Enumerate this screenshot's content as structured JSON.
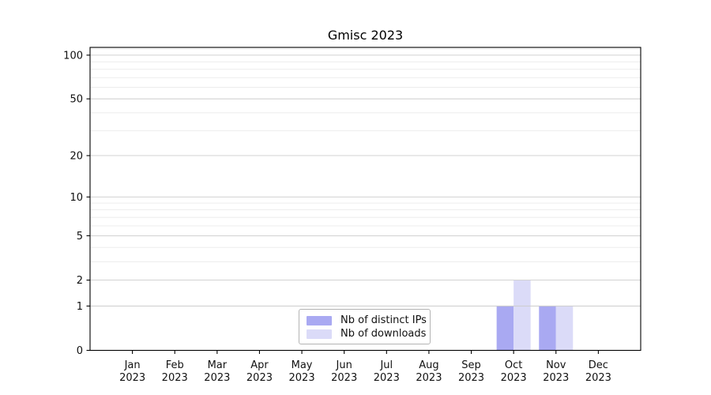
{
  "chart_data": {
    "type": "bar",
    "title": "Gmisc 2023",
    "xlabel": "",
    "ylabel": "",
    "yscale": "log1p",
    "ylim": [
      0,
      113
    ],
    "grid": "on",
    "legend_position": "bottom-center-inside",
    "categories": [
      {
        "month": "Jan",
        "year": "2023"
      },
      {
        "month": "Feb",
        "year": "2023"
      },
      {
        "month": "Mar",
        "year": "2023"
      },
      {
        "month": "Apr",
        "year": "2023"
      },
      {
        "month": "May",
        "year": "2023"
      },
      {
        "month": "Jun",
        "year": "2023"
      },
      {
        "month": "Jul",
        "year": "2023"
      },
      {
        "month": "Aug",
        "year": "2023"
      },
      {
        "month": "Sep",
        "year": "2023"
      },
      {
        "month": "Oct",
        "year": "2023"
      },
      {
        "month": "Nov",
        "year": "2023"
      },
      {
        "month": "Dec",
        "year": "2023"
      }
    ],
    "series": [
      {
        "name": "Nb of distinct IPs",
        "color": "#a9a9f2",
        "values": [
          0,
          0,
          0,
          0,
          0,
          0,
          0,
          0,
          0,
          1,
          1,
          0
        ]
      },
      {
        "name": "Nb of downloads",
        "color": "#dbdbf8",
        "values": [
          0,
          0,
          0,
          0,
          0,
          0,
          0,
          0,
          0,
          2,
          1,
          0
        ]
      }
    ],
    "y_ticks": [
      0,
      1,
      2,
      5,
      10,
      20,
      50,
      100
    ],
    "y_minor_gridlines": [
      3,
      4,
      6,
      7,
      8,
      9,
      30,
      40,
      60,
      70,
      80,
      90,
      110
    ],
    "colors": {
      "grid_major": "#cccccc",
      "grid_minor": "#ebebeb",
      "axis": "#000000",
      "tick_label": "#111111",
      "background": "#ffffff"
    }
  }
}
